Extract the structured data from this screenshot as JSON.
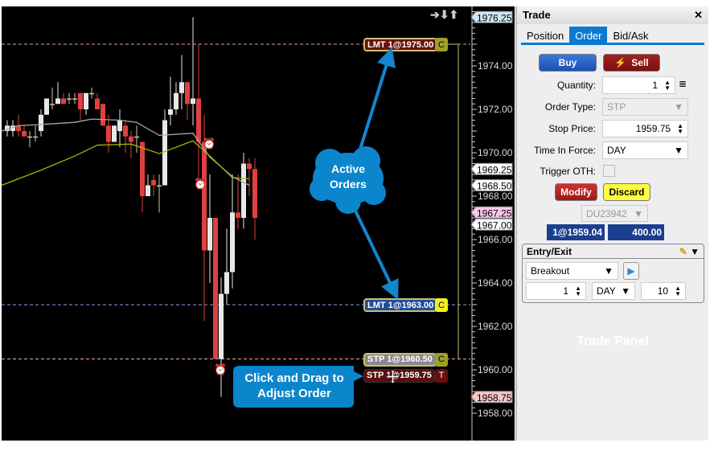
{
  "chart": {
    "price_labels": [
      "1974.00",
      "1972.00",
      "1970.00",
      "1968.00",
      "1966.00",
      "1964.00",
      "1962.00",
      "1960.00",
      "1958.00"
    ],
    "price_ticks": [
      1974,
      1972,
      1970,
      1968,
      1966,
      1964,
      1962,
      1960,
      1958
    ],
    "flags": [
      {
        "text": "1976.25",
        "price": 1976.25,
        "color": "#cfe6f5"
      },
      {
        "text": "1969.25",
        "price": 1969.25,
        "color": "#ffffff"
      },
      {
        "text": "1968.50",
        "price": 1968.5,
        "color": "#ffffff"
      },
      {
        "text": "1967.25",
        "price": 1967.25,
        "color": "#f6c8e8"
      },
      {
        "text": "1967.00",
        "price": 1967.0,
        "color": "#ffffff"
      },
      {
        "text": "1958.75",
        "price": 1958.75,
        "color": "#f7c6c6"
      }
    ],
    "orders": [
      {
        "label": "LMT 1@1975.00",
        "price": 1975.0,
        "side": "C",
        "bg": "#6b1010",
        "line": "#e0a0a0"
      },
      {
        "label": "LMT 1@1963.00",
        "price": 1963.0,
        "side": "C",
        "bg": "#1f4f9a",
        "line": "#8aa2e0"
      },
      {
        "label": "STP 1@1960.50",
        "price": 1960.5,
        "side": "C",
        "bg": "#8a8a8a",
        "line": "#f0b0b0"
      },
      {
        "label": "STP 1@1959.75",
        "price": 1959.75,
        "side": "T",
        "bg": "#5a0f0f",
        "line": ""
      }
    ],
    "nav_icons": [
      "arrow-right-icon",
      "arrow-down-icon",
      "arrow-up-icon"
    ],
    "candles": [
      [
        1971.0,
        1971.5,
        1970.75,
        1971.25
      ],
      [
        1971.0,
        1971.5,
        1970.75,
        1971.25
      ],
      [
        1971.25,
        1971.75,
        1970.75,
        1971.0
      ],
      [
        1971.0,
        1971.25,
        1970.75,
        1970.75
      ],
      [
        1970.75,
        1971.0,
        1970.25,
        1970.75
      ],
      [
        1970.75,
        1971.25,
        1970.5,
        1970.75
      ],
      [
        1971.0,
        1972.0,
        1970.75,
        1971.75
      ],
      [
        1971.75,
        1972.5,
        1971.75,
        1972.5
      ],
      [
        1972.25,
        1973.0,
        1972.0,
        1972.25
      ],
      [
        1972.25,
        1973.25,
        1972.25,
        1972.5
      ],
      [
        1972.5,
        1972.75,
        1972.25,
        1972.25
      ],
      [
        1972.5,
        1972.75,
        1972.25,
        1972.5
      ],
      [
        1972.5,
        1972.75,
        1972.25,
        1972.5
      ],
      [
        1972.75,
        1972.75,
        1971.5,
        1972.0
      ],
      [
        1972.0,
        1972.75,
        1971.75,
        1972.75
      ],
      [
        1972.75,
        1973.0,
        1972.5,
        1972.75
      ],
      [
        1972.5,
        1972.75,
        1972.0,
        1972.0
      ],
      [
        1972.25,
        1972.25,
        1971.25,
        1971.25
      ],
      [
        1971.25,
        1971.75,
        1970.0,
        1970.5
      ],
      [
        1970.5,
        1971.25,
        1970.5,
        1971.25
      ],
      [
        1971.0,
        1972.0,
        1970.25,
        1971.5
      ],
      [
        1971.25,
        1971.5,
        1970.0,
        1970.75
      ],
      [
        1970.75,
        1971.0,
        1969.75,
        1970.5
      ],
      [
        1970.75,
        1971.25,
        1970.0,
        1970.75
      ],
      [
        1970.5,
        1970.5,
        1967.25,
        1968.0
      ],
      [
        1968.0,
        1969.0,
        1968.0,
        1968.5
      ],
      [
        1968.75,
        1969.0,
        1968.0,
        1968.5
      ],
      [
        1968.5,
        1969.0,
        1967.25,
        1968.5
      ],
      [
        1968.5,
        1972.0,
        1968.5,
        1971.5
      ],
      [
        1971.75,
        1973.5,
        1971.25,
        1972.0
      ],
      [
        1972.0,
        1973.25,
        1971.75,
        1972.75
      ],
      [
        1972.75,
        1974.5,
        1972.0,
        1973.25
      ],
      [
        1973.25,
        1973.25,
        1971.5,
        1972.25
      ],
      [
        1972.25,
        1976.25,
        1971.25,
        1972.5
      ],
      [
        1972.5,
        1975.0,
        1968.5,
        1970.5
      ],
      [
        1970.5,
        1971.75,
        1962.25,
        1965.5
      ],
      [
        1965.5,
        1969.0,
        1964.0,
        1967.0
      ],
      [
        1967.0,
        1967.0,
        1960.5,
        1960.5
      ],
      [
        1960.5,
        1964.25,
        1958.75,
        1963.5
      ],
      [
        1963.5,
        1966.5,
        1963.0,
        1964.5
      ],
      [
        1964.5,
        1969.0,
        1963.75,
        1967.25
      ],
      [
        1967.25,
        1969.0,
        1966.5,
        1967.0
      ],
      [
        1967.0,
        1970.0,
        1966.5,
        1969.5
      ],
      [
        1969.5,
        1969.75,
        1968.0,
        1969.25
      ],
      [
        1969.25,
        1969.75,
        1966.0,
        1967.0
      ]
    ],
    "ma_gray": [
      [
        -1,
        1971.0
      ],
      [
        2,
        1971.25
      ],
      [
        6,
        1971.3
      ],
      [
        12,
        1971.4
      ],
      [
        15,
        1971.55
      ],
      [
        20,
        1971.5
      ],
      [
        23,
        1971.4
      ],
      [
        27,
        1970.8
      ],
      [
        33,
        1970.9
      ],
      [
        36,
        1969.8
      ],
      [
        40,
        1968.9
      ],
      [
        43,
        1968.5
      ]
    ],
    "ma_green": [
      [
        -1,
        1968.5
      ],
      [
        6,
        1969.2
      ],
      [
        12,
        1969.85
      ],
      [
        16,
        1970.35
      ],
      [
        22,
        1970.4
      ],
      [
        27,
        1969.96
      ],
      [
        33,
        1970.55
      ],
      [
        36,
        1969.85
      ],
      [
        40,
        1968.85
      ],
      [
        43,
        1968.8
      ]
    ],
    "colors": {
      "up": "#e8e8e8",
      "down": "#e04040",
      "ma_gray": "#aaaaaa",
      "ma_green": "#9ab800"
    }
  },
  "callouts": {
    "active_orders": "Active Orders",
    "drag": "Click and Drag to Adjust Order",
    "trade_panel": "Trade Panel"
  },
  "panel": {
    "title": "Trade",
    "tabs": [
      "Position",
      "Order",
      "Bid/Ask"
    ],
    "active_tab": "Order",
    "buy": "Buy",
    "sell": "Sell",
    "quantity_label": "Quantity:",
    "quantity": "1",
    "order_type_label": "Order Type:",
    "order_type": "STP",
    "stop_price_label": "Stop Price:",
    "stop_price": "1959.75",
    "tif_label": "Time In Force:",
    "tif": "DAY",
    "trigger_label": "Trigger OTH:",
    "modify": "Modify",
    "discard": "Discard",
    "account": "DU23942",
    "fill_summary": "1@1959.04",
    "fill_value": "400.00",
    "entry_exit": {
      "title": "Entry/Exit",
      "strategy": "Breakout",
      "qty": "1",
      "tif": "DAY",
      "value": "10"
    }
  }
}
